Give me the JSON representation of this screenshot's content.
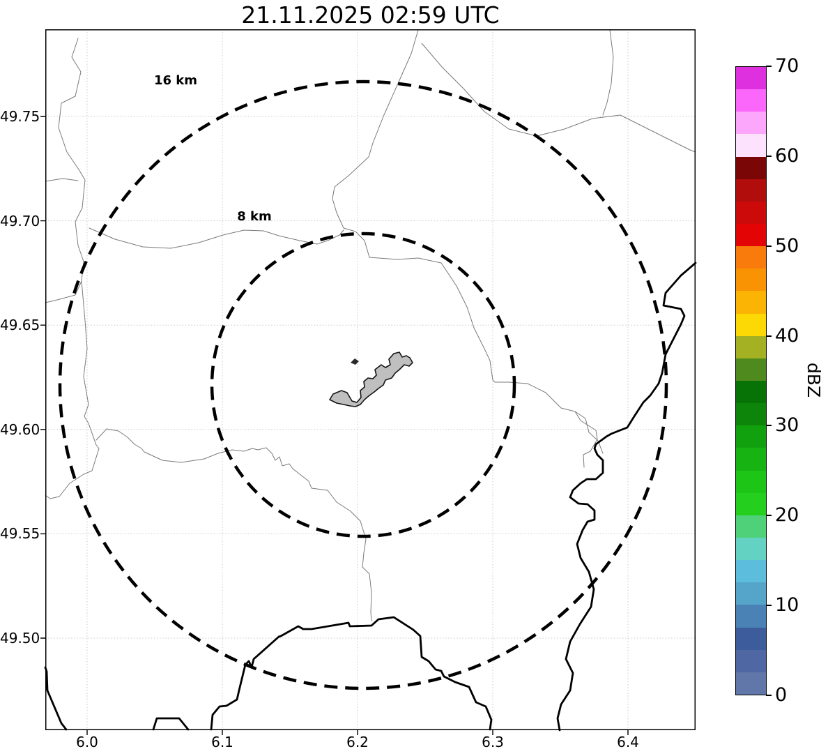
{
  "title": "21.11.2025 02:59 UTC",
  "map": {
    "x_axis": {
      "ticks": [
        "6.0",
        "6.1",
        "6.2",
        "6.3",
        "6.4"
      ]
    },
    "y_axis": {
      "ticks": [
        "49.75",
        "49.70",
        "49.65",
        "49.60",
        "49.55",
        "49.50"
      ]
    },
    "range_rings": [
      {
        "label": "16 km"
      },
      {
        "label": "8 km"
      }
    ]
  },
  "colorbar": {
    "label": "dBZ",
    "min": 0,
    "max": 70,
    "ticks": [
      "0",
      "10",
      "20",
      "30",
      "40",
      "50",
      "60",
      "70"
    ],
    "bands": [
      {
        "from": 0,
        "to": 2.5,
        "color": "#6277A9"
      },
      {
        "from": 2.5,
        "to": 5,
        "color": "#4F68A3"
      },
      {
        "from": 5,
        "to": 7.5,
        "color": "#3D5C9B"
      },
      {
        "from": 7.5,
        "to": 10,
        "color": "#4B82B5"
      },
      {
        "from": 10,
        "to": 12.5,
        "color": "#55A4C9"
      },
      {
        "from": 12.5,
        "to": 15,
        "color": "#5DBDDC"
      },
      {
        "from": 15,
        "to": 17.5,
        "color": "#63D2C2"
      },
      {
        "from": 17.5,
        "to": 20,
        "color": "#4ED179"
      },
      {
        "from": 20,
        "to": 22.5,
        "color": "#24CF1D"
      },
      {
        "from": 22.5,
        "to": 25,
        "color": "#1DC517"
      },
      {
        "from": 25,
        "to": 27.5,
        "color": "#17B312"
      },
      {
        "from": 27.5,
        "to": 30,
        "color": "#12A10E"
      },
      {
        "from": 30,
        "to": 32.5,
        "color": "#0C850A"
      },
      {
        "from": 32.5,
        "to": 35,
        "color": "#077307"
      },
      {
        "from": 35,
        "to": 37.5,
        "color": "#4F8A1F"
      },
      {
        "from": 37.5,
        "to": 40,
        "color": "#A4B122"
      },
      {
        "from": 40,
        "to": 42.5,
        "color": "#FCD805"
      },
      {
        "from": 42.5,
        "to": 45,
        "color": "#FBB403"
      },
      {
        "from": 45,
        "to": 47.5,
        "color": "#FA9303"
      },
      {
        "from": 47.5,
        "to": 50,
        "color": "#F87B0C"
      },
      {
        "from": 50,
        "to": 52.5,
        "color": "#E30505"
      },
      {
        "from": 52.5,
        "to": 55,
        "color": "#CC0A0A"
      },
      {
        "from": 55,
        "to": 57.5,
        "color": "#B10D0D"
      },
      {
        "from": 57.5,
        "to": 60,
        "color": "#7B0606"
      },
      {
        "from": 60,
        "to": 62.5,
        "color": "#FDE2FD"
      },
      {
        "from": 62.5,
        "to": 65,
        "color": "#FCA7FC"
      },
      {
        "from": 65,
        "to": 67.5,
        "color": "#FA67FA"
      },
      {
        "from": 67.5,
        "to": 70,
        "color": "#DE30DE"
      }
    ]
  }
}
